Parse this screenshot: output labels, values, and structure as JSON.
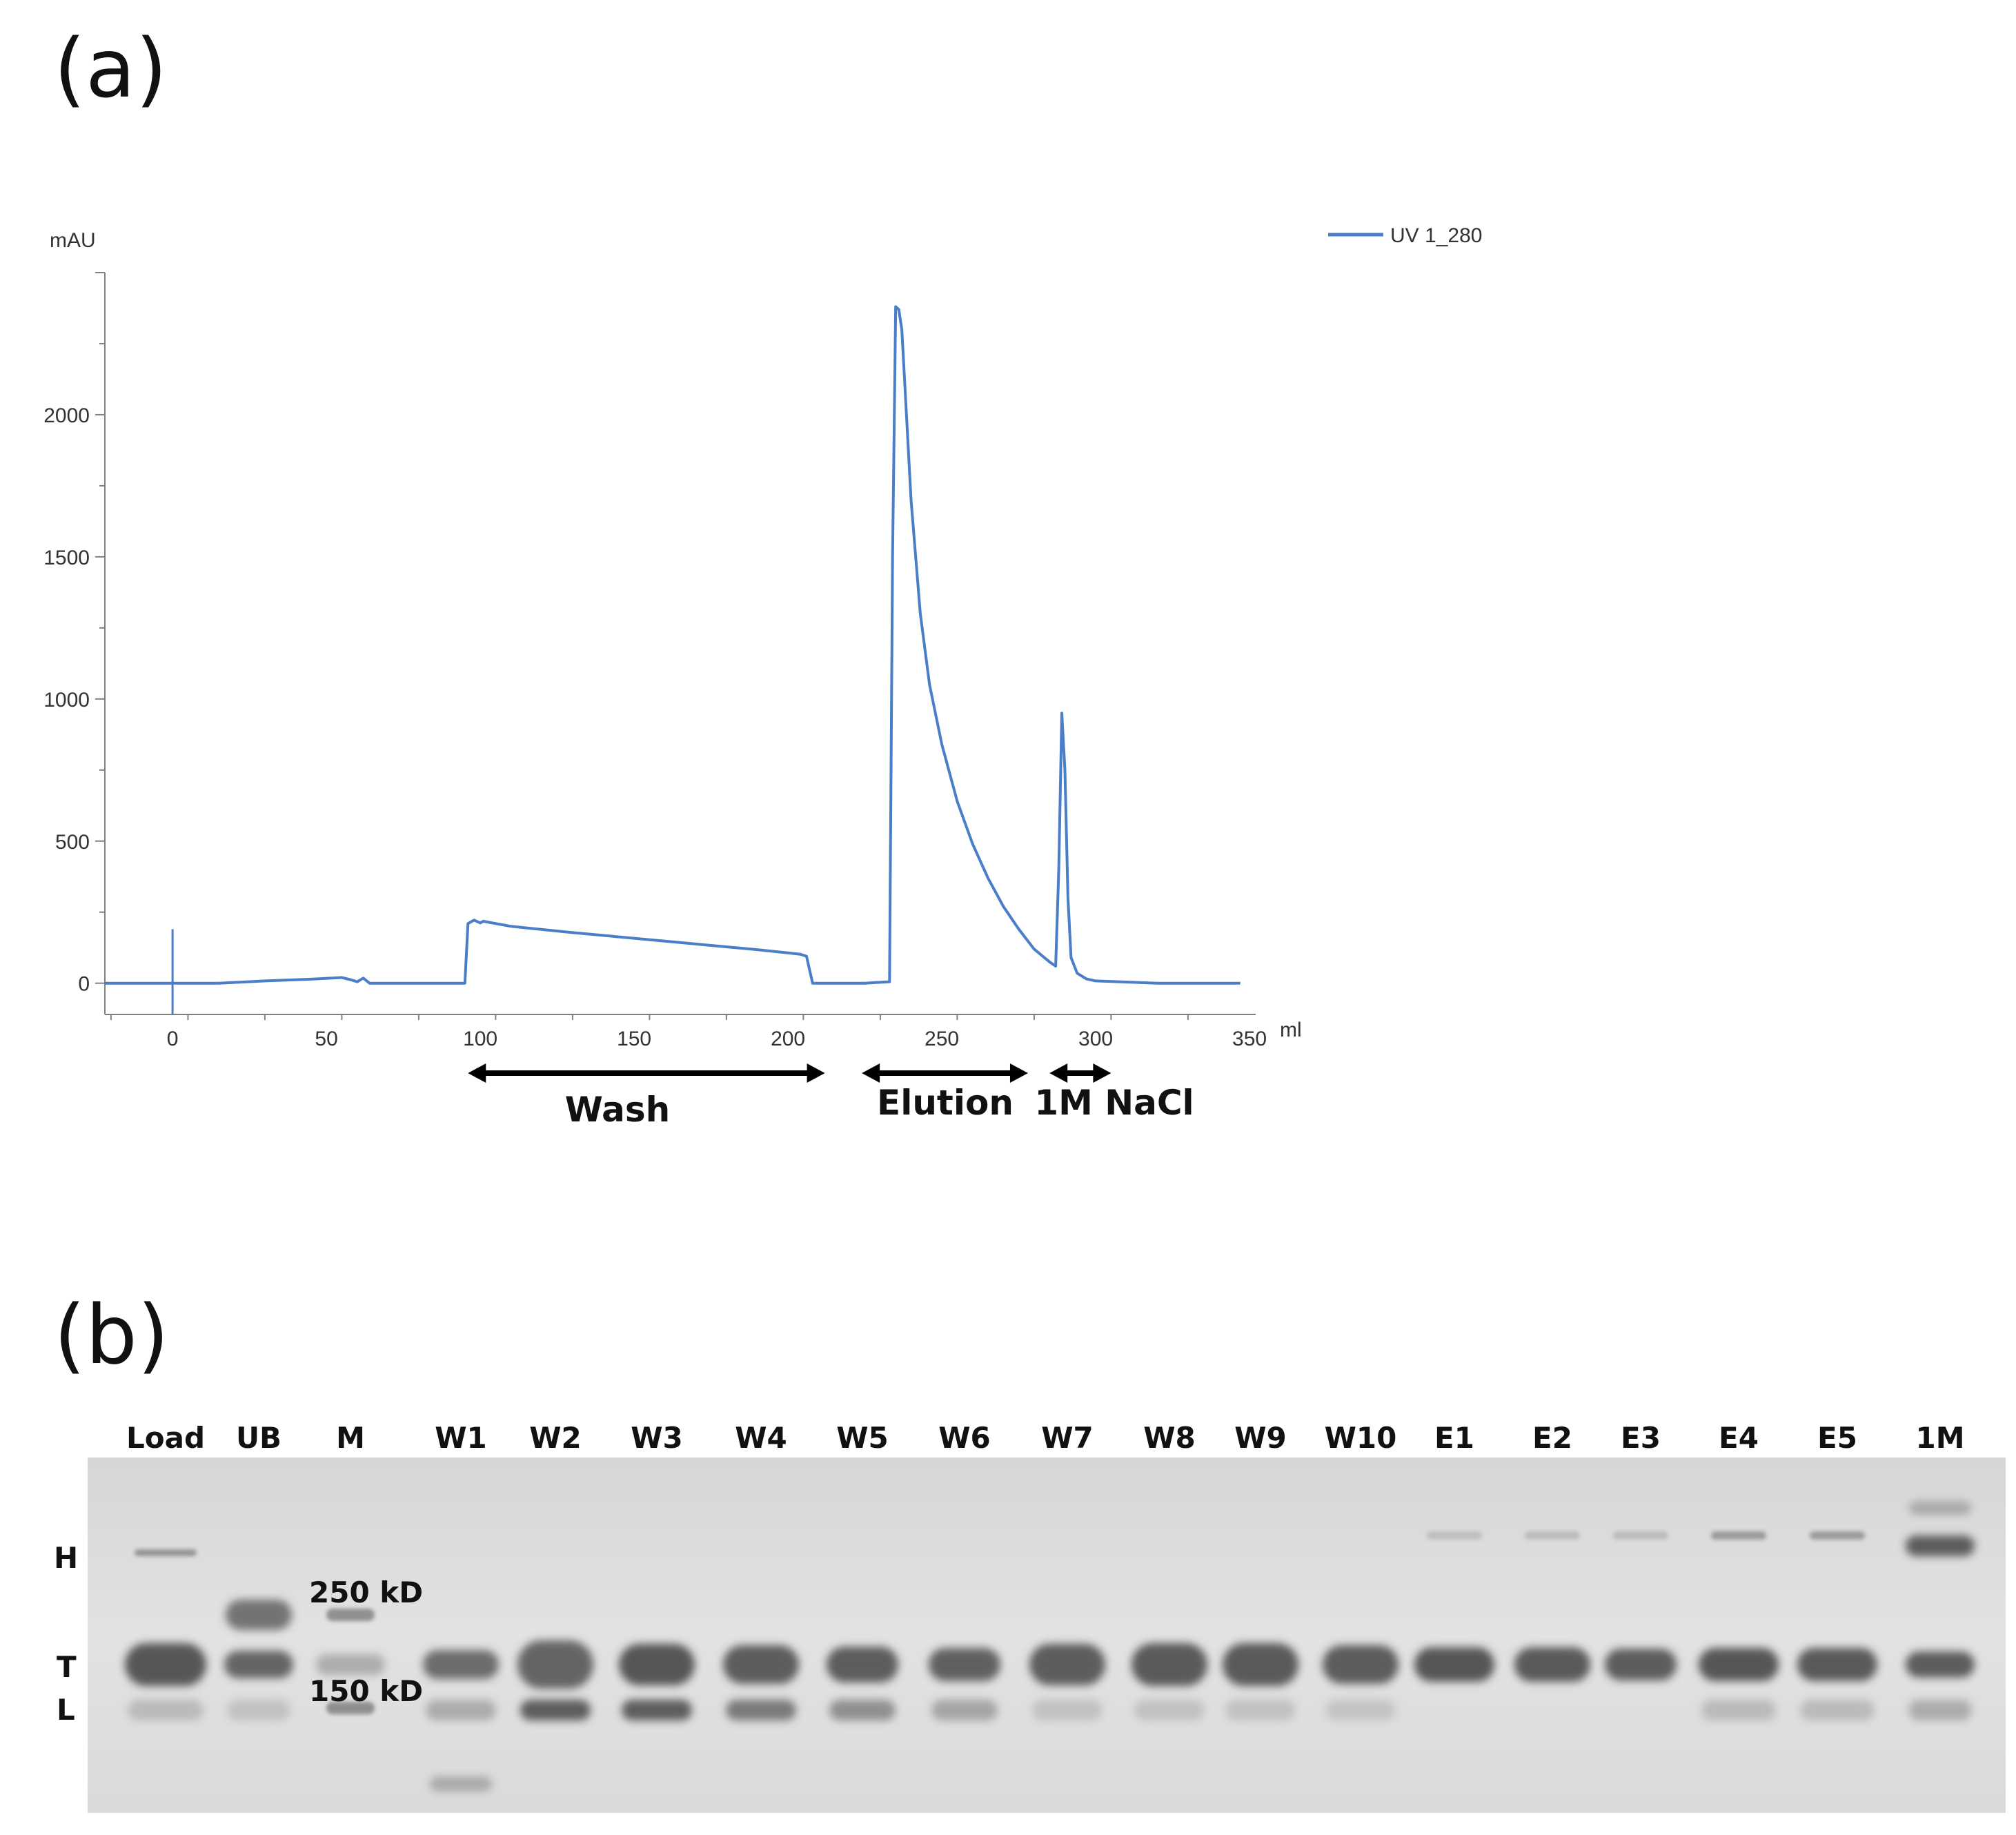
{
  "panel_labels": {
    "a": "(a)",
    "b": "(b)"
  },
  "colors": {
    "trace": "#4a7ec8",
    "axis": "#7f7f7f",
    "arrow": "#000000",
    "gel_bg": "#dedede",
    "band": "#505050"
  },
  "chart_data": [
    {
      "type": "line",
      "title": "",
      "xlabel": "ml",
      "ylabel": "mAU",
      "xlim": [
        -22,
        352
      ],
      "ylim": [
        -110,
        2500
      ],
      "xticks": [
        0,
        50,
        100,
        150,
        200,
        250,
        300,
        350
      ],
      "yticks": [
        0,
        500,
        1000,
        1500,
        2000
      ],
      "grid": false,
      "legend_position": "top-right",
      "series": [
        {
          "name": "UV 1_280",
          "color": "#4a7ec8",
          "x": [
            -22,
            0,
            15,
            30,
            45,
            55,
            58,
            60,
            62,
            64,
            80,
            95,
            96,
            98,
            100,
            101,
            103,
            110,
            130,
            150,
            170,
            190,
            204,
            206,
            208,
            215,
            225,
            233,
            234,
            235,
            236,
            237,
            238,
            240,
            243,
            246,
            250,
            255,
            260,
            265,
            270,
            275,
            280,
            285,
            287,
            288,
            289,
            290,
            291,
            292,
            294,
            297,
            300,
            320,
            340,
            347
          ],
          "y": [
            0,
            0,
            0,
            8,
            14,
            20,
            12,
            5,
            18,
            0,
            0,
            0,
            210,
            222,
            212,
            218,
            214,
            200,
            178,
            158,
            138,
            118,
            102,
            95,
            0,
            0,
            0,
            5,
            1500,
            2380,
            2370,
            2300,
            2100,
            1700,
            1300,
            1050,
            840,
            640,
            490,
            370,
            270,
            190,
            120,
            75,
            60,
            400,
            950,
            750,
            300,
            90,
            35,
            15,
            8,
            0,
            0,
            0
          ]
        },
        {
          "name": "",
          "color": "#4a7ec8",
          "x": [
            0,
            0
          ],
          "y": [
            -110,
            190
          ]
        }
      ],
      "annotations": [
        {
          "label": "Wash",
          "x_start": 96,
          "x_end": 212
        },
        {
          "label": "Elution",
          "x_start": 224,
          "x_end": 278
        },
        {
          "label": "1M  NaCl",
          "x_start": 285,
          "x_end": 305
        }
      ]
    }
  ],
  "gel": {
    "lanes": [
      "Load",
      "UB",
      "M",
      "W1",
      "W2",
      "W3",
      "W4",
      "W5",
      "W6",
      "W7",
      "W8",
      "W9",
      "W10",
      "E1",
      "E2",
      "E3",
      "E4",
      "E5",
      "1M"
    ],
    "markers": [
      "250 kD",
      "150 kD"
    ],
    "band_labels": [
      "H",
      "T",
      "L"
    ]
  }
}
